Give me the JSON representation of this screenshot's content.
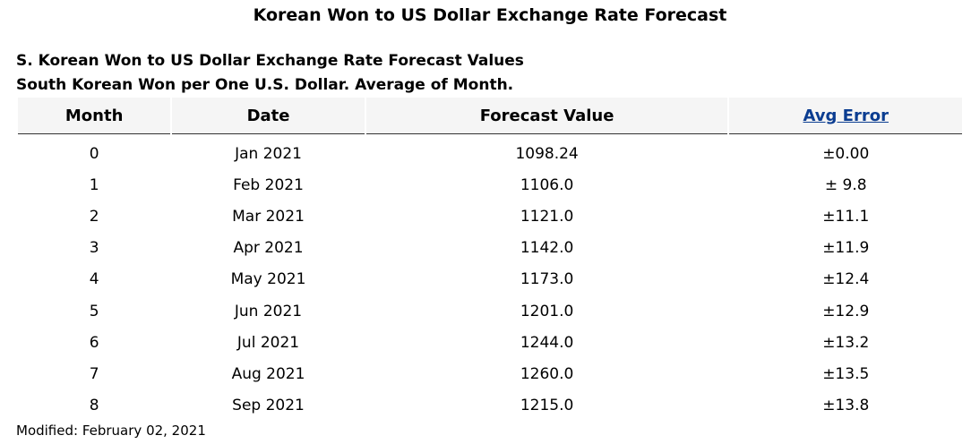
{
  "page": {
    "title": "Korean Won to US Dollar Exchange Rate Forecast",
    "caption_line1": "S. Korean Won to US Dollar Exchange Rate Forecast Values",
    "caption_line2": "South Korean Won per One U.S. Dollar.  Average of Month."
  },
  "table": {
    "headers": {
      "month": "Month",
      "date": "Date",
      "value": "Forecast Value",
      "error": "Avg Error"
    },
    "rows": [
      {
        "month": "0",
        "date": "Jan 2021",
        "value": "1098.24",
        "error": "±0.00"
      },
      {
        "month": "1",
        "date": "Feb 2021",
        "value": "1106.0",
        "error": "± 9.8"
      },
      {
        "month": "2",
        "date": "Mar 2021",
        "value": "1121.0",
        "error": "±11.1"
      },
      {
        "month": "3",
        "date": "Apr 2021",
        "value": "1142.0",
        "error": "±11.9"
      },
      {
        "month": "4",
        "date": "May 2021",
        "value": "1173.0",
        "error": "±12.4"
      },
      {
        "month": "5",
        "date": "Jun 2021",
        "value": "1201.0",
        "error": "±12.9"
      },
      {
        "month": "6",
        "date": "Jul 2021",
        "value": "1244.0",
        "error": "±13.2"
      },
      {
        "month": "7",
        "date": "Aug 2021",
        "value": "1260.0",
        "error": "±13.5"
      },
      {
        "month": "8",
        "date": "Sep 2021",
        "value": "1215.0",
        "error": "±13.8"
      }
    ]
  },
  "footer": {
    "modified": "Modified: February 02, 2021"
  },
  "colors": {
    "link": "#0b3d91",
    "header_bg": "#f5f5f5"
  }
}
